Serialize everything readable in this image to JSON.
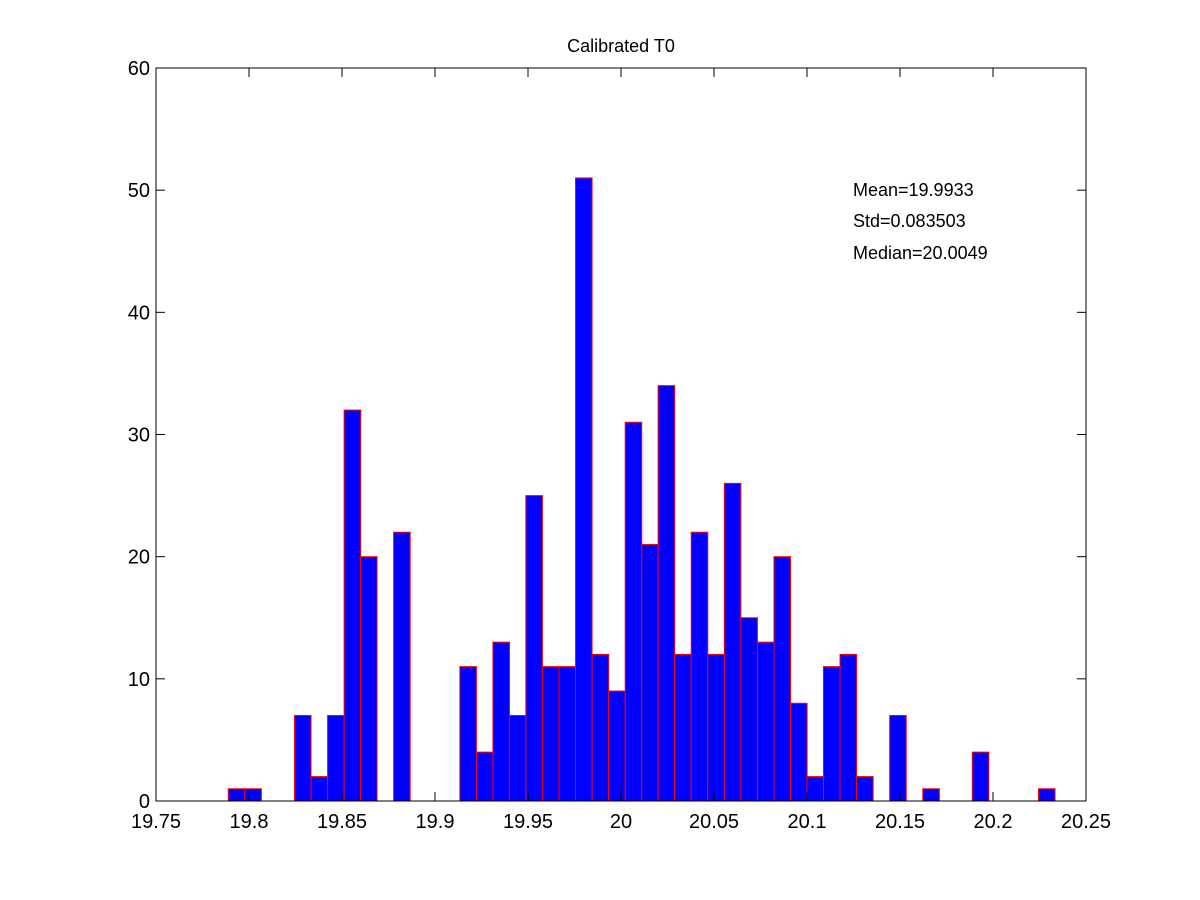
{
  "chart_data": {
    "type": "bar",
    "title": "Calibrated T0",
    "xlabel": "",
    "ylabel": "",
    "xlim": [
      19.75,
      20.25
    ],
    "ylim": [
      0,
      60
    ],
    "xticks": [
      19.75,
      19.8,
      19.85,
      19.9,
      19.95,
      20,
      20.05,
      20.1,
      20.15,
      20.2,
      20.25
    ],
    "xtick_labels": [
      "19.75",
      "19.8",
      "19.85",
      "19.9",
      "19.95",
      "20",
      "20.05",
      "20.1",
      "20.15",
      "20.2",
      "20.25"
    ],
    "yticks": [
      0,
      10,
      20,
      30,
      40,
      50,
      60
    ],
    "ytick_labels": [
      "0",
      "10",
      "20",
      "30",
      "40",
      "50",
      "60"
    ],
    "grid": false,
    "bin_width": 0.0089,
    "bars": [
      {
        "x": 19.7933,
        "value": 1
      },
      {
        "x": 19.8022,
        "value": 1
      },
      {
        "x": 19.8289,
        "value": 7
      },
      {
        "x": 19.8378,
        "value": 2
      },
      {
        "x": 19.8467,
        "value": 7
      },
      {
        "x": 19.8556,
        "value": 32
      },
      {
        "x": 19.8644,
        "value": 20
      },
      {
        "x": 19.8822,
        "value": 22
      },
      {
        "x": 19.9178,
        "value": 11
      },
      {
        "x": 19.9267,
        "value": 4
      },
      {
        "x": 19.9356,
        "value": 13
      },
      {
        "x": 19.9444,
        "value": 7
      },
      {
        "x": 19.9533,
        "value": 25
      },
      {
        "x": 19.9622,
        "value": 11
      },
      {
        "x": 19.9711,
        "value": 11
      },
      {
        "x": 19.98,
        "value": 51
      },
      {
        "x": 19.9889,
        "value": 12
      },
      {
        "x": 19.9978,
        "value": 9
      },
      {
        "x": 20.0067,
        "value": 31
      },
      {
        "x": 20.0156,
        "value": 21
      },
      {
        "x": 20.0244,
        "value": 34
      },
      {
        "x": 20.0333,
        "value": 12
      },
      {
        "x": 20.0422,
        "value": 22
      },
      {
        "x": 20.0511,
        "value": 12
      },
      {
        "x": 20.06,
        "value": 26
      },
      {
        "x": 20.0689,
        "value": 15
      },
      {
        "x": 20.0778,
        "value": 13
      },
      {
        "x": 20.0867,
        "value": 20
      },
      {
        "x": 20.0956,
        "value": 8
      },
      {
        "x": 20.1044,
        "value": 2
      },
      {
        "x": 20.1133,
        "value": 11
      },
      {
        "x": 20.1222,
        "value": 12
      },
      {
        "x": 20.1311,
        "value": 2
      },
      {
        "x": 20.1489,
        "value": 7
      },
      {
        "x": 20.1667,
        "value": 1
      },
      {
        "x": 20.1933,
        "value": 4
      },
      {
        "x": 20.2289,
        "value": 1
      }
    ],
    "colors": {
      "bar_fill": "#0000ff",
      "bar_edge": "#ff0000",
      "axis": "#000000"
    },
    "annotations": [
      "Mean=19.9933",
      "Std=0.083503",
      "Median=20.0049"
    ]
  }
}
